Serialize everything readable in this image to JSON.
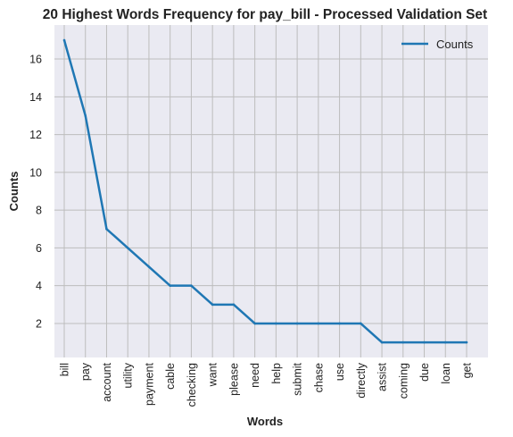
{
  "colors": {
    "plot_background": "#eaeaf2",
    "grid": "#bdbdbd",
    "line": "#1f77b4",
    "text": "#222222"
  },
  "chart_data": {
    "type": "line",
    "title": "20 Highest Words Frequency for pay_bill - Processed Validation Set",
    "xlabel": "Words",
    "ylabel": "Counts",
    "categories": [
      "bill",
      "pay",
      "account",
      "utility",
      "payment",
      "cable",
      "checking",
      "want",
      "please",
      "need",
      "help",
      "submit",
      "chase",
      "use",
      "directly",
      "assist",
      "coming",
      "due",
      "loan",
      "get"
    ],
    "series": [
      {
        "name": "Counts",
        "values": [
          17,
          13,
          7,
          6,
          5,
          4,
          4,
          3,
          3,
          2,
          2,
          2,
          2,
          2,
          2,
          1,
          1,
          1,
          1,
          1
        ]
      }
    ],
    "yticks": [
      2,
      4,
      6,
      8,
      10,
      12,
      14,
      16
    ],
    "ylim": [
      0.2,
      17.8
    ],
    "grid": true,
    "legend_position": "top-right"
  }
}
